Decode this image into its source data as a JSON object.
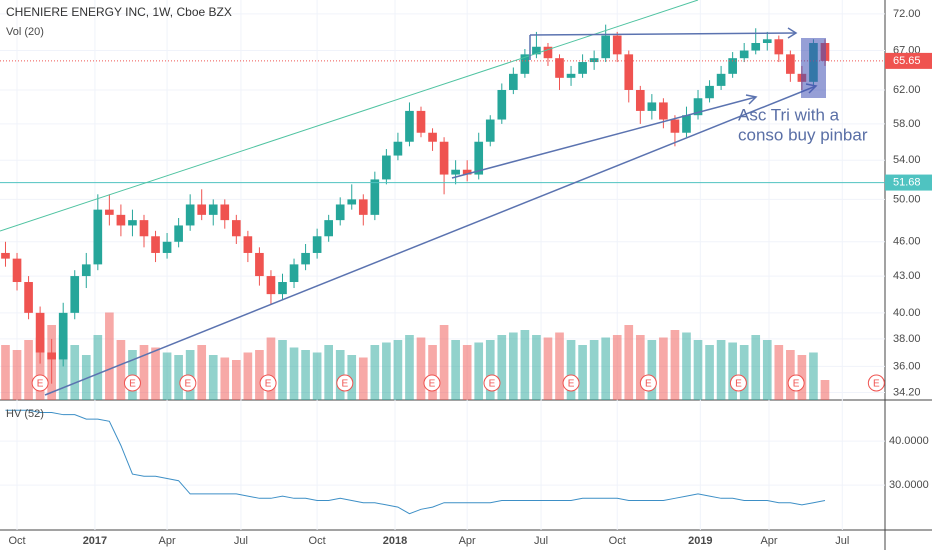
{
  "chart_data": {
    "type": "candlestick",
    "title": "CHENIERE ENERGY INC, 1W, Cboe BZX",
    "volume_label": "Vol (20)",
    "hv_label": "HV (52)",
    "annotation": [
      "Asc Tri with a",
      "conso buy pinbar"
    ],
    "log_scale": true,
    "xlim": [
      -2.95,
      150.4
    ],
    "xticks": [
      {
        "value": 0,
        "label": "Oct"
      },
      {
        "value": 13.5,
        "label": "2017"
      },
      {
        "value": 26,
        "label": "Apr"
      },
      {
        "value": 38.8,
        "label": "Jul"
      },
      {
        "value": 52,
        "label": "Oct"
      },
      {
        "value": 65.5,
        "label": "2018"
      },
      {
        "value": 78,
        "label": "Apr"
      },
      {
        "value": 90.8,
        "label": "Jul"
      },
      {
        "value": 104,
        "label": "Oct"
      },
      {
        "value": 118.4,
        "label": "2019"
      },
      {
        "value": 130.3,
        "label": "Apr"
      },
      {
        "value": 143,
        "label": "Jul"
      }
    ],
    "ylim": [
      33.7,
      74.0
    ],
    "yticks": [
      {
        "value": 72,
        "label": "72.00"
      },
      {
        "value": 67,
        "label": "67.00"
      },
      {
        "value": 62,
        "label": "62.00"
      },
      {
        "value": 58,
        "label": "58.00"
      },
      {
        "value": 54,
        "label": "54.00"
      },
      {
        "value": 50,
        "label": "50.00"
      },
      {
        "value": 46,
        "label": "46.00"
      },
      {
        "value": 43,
        "label": "43.00"
      },
      {
        "value": 40,
        "label": "40.00"
      },
      {
        "value": 38,
        "label": "38.00"
      },
      {
        "value": 36,
        "label": "36.00"
      },
      {
        "value": 34.2,
        "label": "34.20"
      }
    ],
    "last_price": 65.65,
    "level": 51.68,
    "up_color": "#26a69a",
    "down_color": "#ef5350",
    "x": [
      -2,
      0,
      2,
      4,
      6,
      8,
      10,
      12,
      14,
      16,
      18,
      20,
      22,
      24,
      26,
      28,
      30,
      32,
      34,
      36,
      38,
      40,
      42,
      44,
      46,
      48,
      50,
      52,
      54,
      56,
      58,
      60,
      62,
      64,
      66,
      68,
      70,
      72,
      74,
      76,
      78,
      80,
      82,
      84,
      86,
      88,
      90,
      92,
      94,
      96,
      98,
      100,
      102,
      104,
      106,
      108,
      110,
      112,
      114,
      116,
      118,
      120,
      122,
      124,
      126,
      128,
      130,
      132,
      134,
      136,
      138,
      140
    ],
    "open": [
      45,
      44.5,
      42.5,
      40,
      37,
      36.5,
      40,
      43,
      44,
      49,
      48.5,
      47.5,
      48,
      46.5,
      45,
      46,
      47.5,
      49.5,
      48.5,
      49.5,
      48,
      46.5,
      45,
      43,
      41.5,
      42.5,
      44,
      45,
      46.5,
      48,
      49.5,
      50,
      48.5,
      52,
      54.5,
      56,
      59.5,
      57,
      56,
      52.5,
      53,
      52.5,
      56,
      58.5,
      62,
      64,
      66.5,
      67.5,
      66,
      63.5,
      64,
      65.5,
      66,
      69,
      66.5,
      62,
      59.5,
      60.5,
      58.5,
      57,
      59,
      61,
      62.5,
      64,
      66,
      67,
      68,
      68.5,
      66.5,
      64,
      63,
      68
    ],
    "high": [
      46,
      45,
      43,
      40.5,
      38,
      40.8,
      43.5,
      45,
      50.5,
      50.5,
      49.5,
      49,
      48.5,
      47,
      46.8,
      48.2,
      50.5,
      51,
      50,
      50,
      48.5,
      47,
      45.5,
      43.5,
      43.2,
      44.5,
      45.8,
      47.2,
      48.5,
      50.2,
      51.5,
      50.5,
      52.8,
      55.2,
      57,
      60.5,
      60,
      57.5,
      56.5,
      54,
      54,
      57,
      59,
      62.8,
      64.8,
      67.2,
      69.5,
      68,
      66.5,
      65,
      66.5,
      67,
      70.5,
      69.5,
      67,
      62.5,
      61.5,
      61,
      59,
      60,
      62,
      63.2,
      65,
      66.8,
      68,
      70,
      69.5,
      69,
      67,
      65,
      68.5,
      68.5
    ],
    "low": [
      43.8,
      41.8,
      39.5,
      36.2,
      34.8,
      36,
      39.5,
      42,
      43.5,
      47.5,
      46.5,
      46.5,
      45.5,
      44.2,
      44.5,
      45.5,
      47,
      48,
      47.5,
      47.2,
      45.8,
      44.2,
      42.2,
      40.7,
      41,
      42,
      43.5,
      44.5,
      46,
      47.5,
      49,
      47.5,
      48,
      51.5,
      54,
      55.5,
      56.5,
      55,
      50.5,
      51.5,
      51.8,
      52,
      55.5,
      58,
      61.5,
      63.5,
      66,
      65,
      62,
      62.5,
      63.5,
      64.5,
      65.5,
      65.5,
      60.5,
      58,
      58.5,
      57.5,
      55.5,
      56.5,
      58.5,
      60.5,
      62,
      63.5,
      65.5,
      66.5,
      67,
      65.5,
      63,
      62,
      62.5,
      65
    ],
    "close": [
      44.5,
      42.5,
      40,
      37,
      36.5,
      40,
      43,
      44,
      49,
      48.5,
      47.5,
      48,
      46.5,
      45,
      46,
      47.5,
      49.5,
      48.5,
      49.5,
      48,
      46.5,
      45,
      43,
      41.5,
      42.5,
      44,
      45,
      46.5,
      48,
      49.5,
      50,
      48.5,
      52,
      54.5,
      56,
      59.5,
      57,
      56,
      52.5,
      53,
      52.5,
      56,
      58.5,
      62,
      64,
      66.5,
      67.5,
      66,
      63.5,
      64,
      65.5,
      66,
      69,
      66.5,
      62,
      59.5,
      60.5,
      58.5,
      57,
      59,
      61,
      62.5,
      64,
      66,
      67,
      68,
      68.5,
      66.5,
      64,
      63,
      68,
      65.65
    ],
    "volume": [
      22,
      20,
      24,
      25,
      30,
      26,
      22,
      18,
      26,
      35,
      24,
      20,
      22,
      21,
      19,
      18,
      20,
      22,
      18,
      17,
      16,
      19,
      20,
      25,
      24,
      21,
      20,
      19,
      22,
      20,
      18,
      17,
      22,
      23,
      24,
      26,
      25,
      22,
      30,
      24,
      22,
      23,
      24,
      26,
      27,
      28,
      26,
      25,
      27,
      24,
      22,
      24,
      25,
      26,
      30,
      26,
      24,
      25,
      28,
      27,
      24,
      22,
      24,
      23,
      22,
      26,
      24,
      22,
      20,
      18,
      19,
      8
    ],
    "vlim": [
      0,
      40
    ],
    "earnings": [
      {
        "x": 4,
        "label": "E"
      },
      {
        "x": 20,
        "label": "E"
      },
      {
        "x": 29.6,
        "label": "E"
      },
      {
        "x": 43.5,
        "label": "E"
      },
      {
        "x": 56.8,
        "label": "E"
      },
      {
        "x": 71.9,
        "label": "E"
      },
      {
        "x": 82.3,
        "label": "E"
      },
      {
        "x": 96,
        "label": "E"
      },
      {
        "x": 109.4,
        "label": "E"
      },
      {
        "x": 125,
        "label": "E"
      },
      {
        "x": 135,
        "label": "E"
      },
      {
        "x": 148.9,
        "label": "E"
      }
    ],
    "hv": [
      47,
      47,
      47,
      46.5,
      46.5,
      46,
      46,
      45,
      45,
      44.5,
      39,
      32.5,
      32,
      32,
      31.5,
      31,
      28,
      28,
      28,
      28,
      28,
      27.5,
      27,
      27,
      27.5,
      27,
      27,
      26.5,
      26.5,
      27,
      26.5,
      26,
      26,
      25.5,
      25,
      23.5,
      24.5,
      25,
      26,
      26,
      26,
      26,
      26,
      26.5,
      26.5,
      26.5,
      26.5,
      26.5,
      26.5,
      26.5,
      27,
      27,
      27,
      27,
      26.5,
      26.5,
      26.5,
      26.5,
      27,
      27.5,
      28,
      27.5,
      27,
      27,
      26.5,
      26.5,
      26.5,
      26,
      26,
      25.5,
      26,
      26.5
    ],
    "hv_color": "#3d8fc6",
    "hv_ylim": [
      19.8,
      48.2
    ],
    "hv_yticks": [
      {
        "value": 40,
        "label": "40.0000"
      },
      {
        "value": 30,
        "label": "30.0000"
      }
    ]
  }
}
